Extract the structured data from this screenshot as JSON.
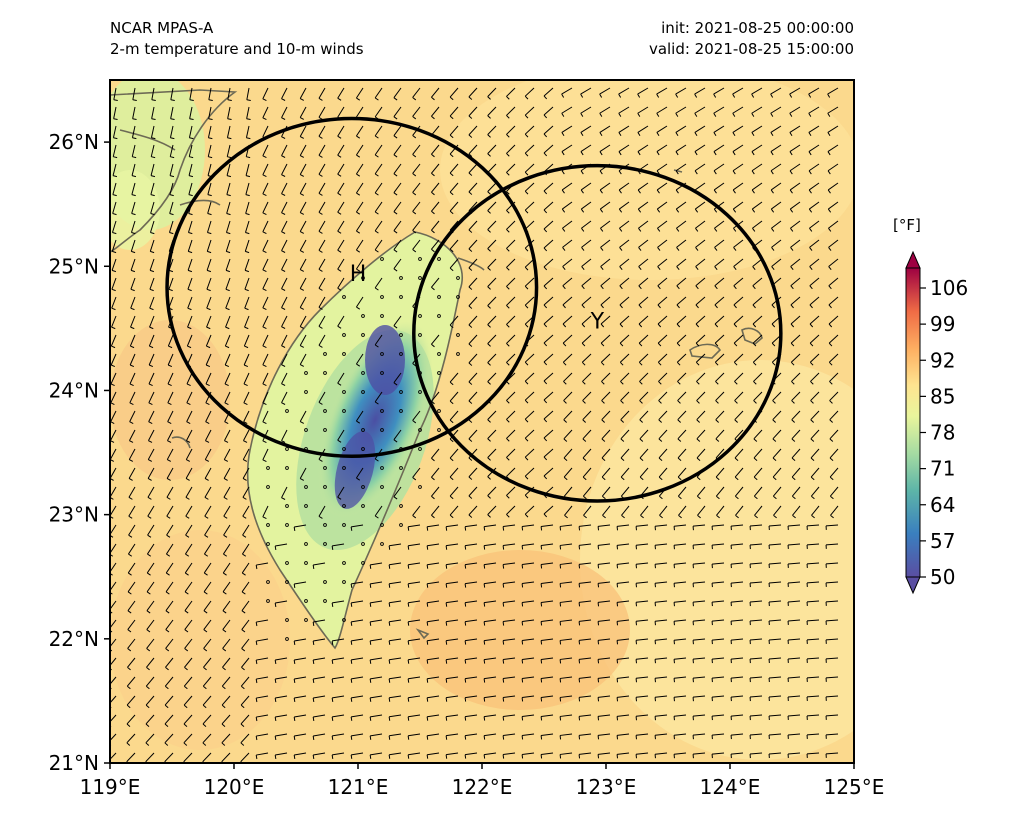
{
  "header": {
    "model": "NCAR MPAS-A",
    "field": "2-m temperature and 10-m winds",
    "init": "init: 2021-08-25 00:00:00",
    "valid": "valid: 2021-08-25 15:00:00"
  },
  "map": {
    "lon_ticks": [
      "119°E",
      "120°E",
      "121°E",
      "122°E",
      "123°E",
      "124°E",
      "125°E"
    ],
    "lat_ticks": [
      "26°N",
      "25°N",
      "24°N",
      "23°N",
      "22°N",
      "21°N"
    ],
    "lon_range": [
      119,
      125
    ],
    "lat_range": [
      21,
      26.5
    ],
    "markers": [
      {
        "label": "H",
        "lon": 121.0,
        "lat": 24.88
      },
      {
        "label": "Y",
        "lon": 122.93,
        "lat": 24.5
      }
    ],
    "circles": [
      {
        "name": "circle-h",
        "center_lon": 120.95,
        "center_lat": 24.83,
        "radius_lon": 1.49,
        "radius_lat": 1.36
      },
      {
        "name": "circle-y",
        "center_lon": 122.93,
        "center_lat": 24.46,
        "radius_lon": 1.48,
        "radius_lat": 1.35
      }
    ]
  },
  "colorbar": {
    "units": "[°F]",
    "ticks": [
      "106",
      "99",
      "92",
      "85",
      "78",
      "71",
      "64",
      "57",
      "50"
    ],
    "min": 50,
    "max": 106,
    "colors": [
      "#4b56a8",
      "#3f8fc0",
      "#7ecca3",
      "#c7e89e",
      "#fbf8b0",
      "#fdd98a",
      "#f9a55e",
      "#e65a3f",
      "#a7123f"
    ]
  }
}
